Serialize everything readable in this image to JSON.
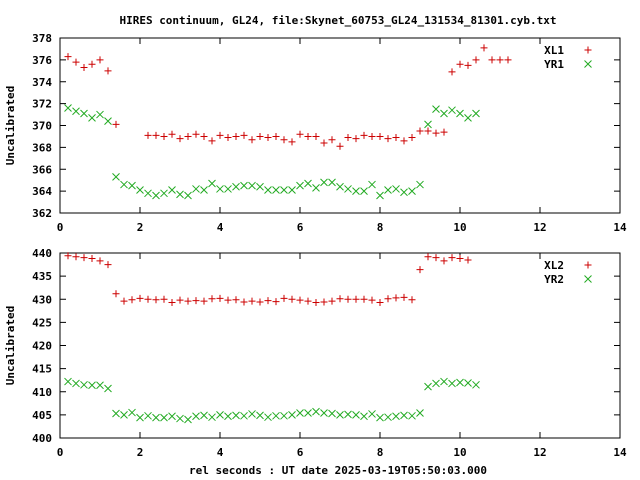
{
  "title": "HIRES continuum, GL24, file:Skynet_60753_GL24_131534_81301.cyb.txt",
  "xlabel": "rel seconds : UT date 2025-03-19T05:50:03.000",
  "colors": {
    "red": "#cc0000",
    "green": "#22aa22"
  },
  "chart_data": [
    {
      "type": "scatter",
      "ylabel": "Uncalibrated",
      "xlim": [
        0,
        14
      ],
      "ylim": [
        362,
        378
      ],
      "xticks": [
        0,
        2,
        4,
        6,
        8,
        10,
        12,
        14
      ],
      "yticks": [
        362,
        364,
        366,
        368,
        370,
        372,
        374,
        376,
        378
      ],
      "legend": "top-right",
      "series": [
        {
          "name": "XL1",
          "marker": "plus",
          "color": "#cc0000",
          "x": [
            0.2,
            0.4,
            0.6,
            0.8,
            1.0,
            1.2,
            1.4,
            1.6,
            1.8,
            2.0,
            2.2,
            2.4,
            2.6,
            2.8,
            3.0,
            3.2,
            3.4,
            3.6,
            3.8,
            4.0,
            4.2,
            4.4,
            4.6,
            4.8,
            5.0,
            5.2,
            5.4,
            5.6,
            5.8,
            6.0,
            6.2,
            6.4,
            6.6,
            6.8,
            7.0,
            7.2,
            7.4,
            7.6,
            7.8,
            8.0,
            8.2,
            8.4,
            8.6,
            8.8,
            9.0,
            9.2,
            9.4,
            9.6,
            9.8,
            10.0,
            10.2,
            10.4,
            10.6,
            10.8,
            11.0,
            11.2,
            11.4,
            11.6,
            11.8,
            12.0,
            12.2,
            12.4,
            12.6,
            12.8,
            13.0,
            13.2,
            13.4,
            13.6,
            13.8,
            14.0
          ],
          "y": [
            376.3,
            375.8,
            375.3,
            375.6,
            376.0,
            375.0,
            370.1,
            null,
            null,
            null,
            369.1,
            369.1,
            369.0,
            369.2,
            368.8,
            369.0,
            369.2,
            369.0,
            368.6,
            369.1,
            368.9,
            369.0,
            369.1,
            368.7,
            369.0,
            368.9,
            369.0,
            368.7,
            368.5,
            369.2,
            369.0,
            369.0,
            368.4,
            368.7,
            368.1,
            368.9,
            368.8,
            369.1,
            369.0,
            369.0,
            368.8,
            368.9,
            368.6,
            368.9,
            369.5,
            369.5,
            369.3,
            369.4,
            374.9,
            375.6,
            375.5,
            376.0,
            377.1,
            376.0,
            376.0,
            376.0,
            null,
            null,
            null,
            null,
            null,
            null,
            null,
            null,
            null,
            null,
            null,
            null,
            null,
            null
          ]
        },
        {
          "name": "YR1",
          "marker": "cross",
          "color": "#22aa22",
          "x": [
            0.2,
            0.4,
            0.6,
            0.8,
            1.0,
            1.2,
            1.4,
            1.6,
            1.8,
            2.0,
            2.2,
            2.4,
            2.6,
            2.8,
            3.0,
            3.2,
            3.4,
            3.6,
            3.8,
            4.0,
            4.2,
            4.4,
            4.6,
            4.8,
            5.0,
            5.2,
            5.4,
            5.6,
            5.8,
            6.0,
            6.2,
            6.4,
            6.6,
            6.8,
            7.0,
            7.2,
            7.4,
            7.6,
            7.8,
            8.0,
            8.2,
            8.4,
            8.6,
            8.8,
            9.0,
            9.2,
            9.4,
            9.6,
            9.8,
            10.0,
            10.2,
            10.4,
            10.6,
            10.8,
            11.0,
            11.2,
            11.4,
            11.6,
            11.8,
            12.0,
            12.2,
            12.4,
            12.6,
            12.8,
            13.0,
            13.2,
            13.4,
            13.6,
            13.8,
            14.0
          ],
          "y": [
            371.6,
            371.3,
            371.1,
            370.7,
            371.0,
            370.4,
            365.3,
            364.6,
            364.5,
            364.1,
            363.8,
            363.6,
            363.8,
            364.1,
            363.7,
            363.6,
            364.2,
            364.1,
            364.7,
            364.2,
            364.2,
            364.4,
            364.5,
            364.5,
            364.4,
            364.1,
            364.1,
            364.1,
            364.1,
            364.5,
            364.7,
            364.3,
            364.8,
            364.8,
            364.4,
            364.2,
            364.0,
            364.0,
            364.6,
            363.6,
            364.1,
            364.2,
            363.9,
            364.0,
            364.6,
            370.1,
            371.5,
            371.1,
            371.4,
            371.1,
            370.7,
            371.1,
            null,
            null,
            null,
            null,
            null,
            null,
            null,
            null,
            null,
            null,
            null,
            null,
            null,
            null,
            null,
            null,
            null,
            null
          ]
        }
      ]
    },
    {
      "type": "scatter",
      "ylabel": "Uncalibrated",
      "xlim": [
        0,
        14
      ],
      "ylim": [
        400,
        440
      ],
      "xticks": [
        0,
        2,
        4,
        6,
        8,
        10,
        12,
        14
      ],
      "yticks": [
        400,
        405,
        410,
        415,
        420,
        425,
        430,
        435,
        440
      ],
      "legend": "top-right",
      "series": [
        {
          "name": "XL2",
          "marker": "plus",
          "color": "#cc0000",
          "x": [
            0.2,
            0.4,
            0.6,
            0.8,
            1.0,
            1.2,
            1.4,
            1.6,
            1.8,
            2.0,
            2.2,
            2.4,
            2.6,
            2.8,
            3.0,
            3.2,
            3.4,
            3.6,
            3.8,
            4.0,
            4.2,
            4.4,
            4.6,
            4.8,
            5.0,
            5.2,
            5.4,
            5.6,
            5.8,
            6.0,
            6.2,
            6.4,
            6.6,
            6.8,
            7.0,
            7.2,
            7.4,
            7.6,
            7.8,
            8.0,
            8.2,
            8.4,
            8.6,
            8.8,
            9.0,
            9.2,
            9.4,
            9.6,
            9.8,
            10.0,
            10.2,
            10.4,
            10.6,
            10.8,
            11.0,
            11.2,
            11.4,
            11.6,
            11.8,
            12.0,
            12.2,
            12.4,
            12.6,
            12.8,
            13.0,
            13.2,
            13.4,
            13.6,
            13.8,
            14.0
          ],
          "y": [
            439.4,
            439.2,
            439.0,
            438.8,
            438.3,
            437.5,
            431.2,
            429.6,
            429.9,
            430.2,
            430.0,
            429.9,
            430.0,
            429.3,
            429.8,
            429.6,
            429.7,
            429.6,
            430.1,
            430.2,
            429.8,
            429.9,
            429.4,
            429.6,
            429.4,
            429.7,
            429.5,
            430.2,
            430.0,
            429.8,
            429.6,
            429.3,
            429.4,
            429.6,
            430.1,
            430.0,
            430.0,
            430.0,
            429.8,
            429.3,
            430.1,
            430.3,
            430.4,
            429.9,
            436.4,
            439.2,
            439.0,
            438.3,
            439.0,
            438.8,
            438.5,
            null,
            null,
            null,
            null,
            null,
            null,
            null,
            null,
            null,
            null,
            null,
            null,
            null,
            null,
            null,
            null,
            null,
            null,
            null
          ]
        },
        {
          "name": "YR2",
          "marker": "cross",
          "color": "#22aa22",
          "x": [
            0.2,
            0.4,
            0.6,
            0.8,
            1.0,
            1.2,
            1.4,
            1.6,
            1.8,
            2.0,
            2.2,
            2.4,
            2.6,
            2.8,
            3.0,
            3.2,
            3.4,
            3.6,
            3.8,
            4.0,
            4.2,
            4.4,
            4.6,
            4.8,
            5.0,
            5.2,
            5.4,
            5.6,
            5.8,
            6.0,
            6.2,
            6.4,
            6.6,
            6.8,
            7.0,
            7.2,
            7.4,
            7.6,
            7.8,
            8.0,
            8.2,
            8.4,
            8.6,
            8.8,
            9.0,
            9.2,
            9.4,
            9.6,
            9.8,
            10.0,
            10.2,
            10.4,
            10.6,
            10.8,
            11.0,
            11.2,
            11.4,
            11.6,
            11.8,
            12.0,
            12.2,
            12.4,
            12.6,
            12.8,
            13.0,
            13.2,
            13.4,
            13.6,
            13.8,
            14.0
          ],
          "y": [
            412.2,
            411.8,
            411.5,
            411.4,
            411.4,
            410.7,
            405.3,
            405.0,
            405.5,
            404.4,
            404.8,
            404.4,
            404.4,
            404.7,
            404.2,
            404.0,
            404.7,
            404.9,
            404.5,
            405.0,
            404.7,
            404.9,
            404.8,
            405.2,
            404.9,
            404.5,
            404.8,
            404.8,
            405.0,
            405.4,
            405.4,
            405.7,
            405.4,
            405.3,
            405.0,
            405.1,
            405.0,
            404.7,
            405.2,
            404.4,
            404.5,
            404.7,
            404.9,
            404.8,
            405.4,
            411.1,
            411.8,
            412.2,
            411.8,
            412.0,
            411.9,
            411.5,
            null,
            null,
            null,
            null,
            null,
            null,
            null,
            null,
            null,
            null,
            null,
            null,
            null,
            null,
            null,
            null,
            null,
            null
          ]
        }
      ]
    }
  ]
}
